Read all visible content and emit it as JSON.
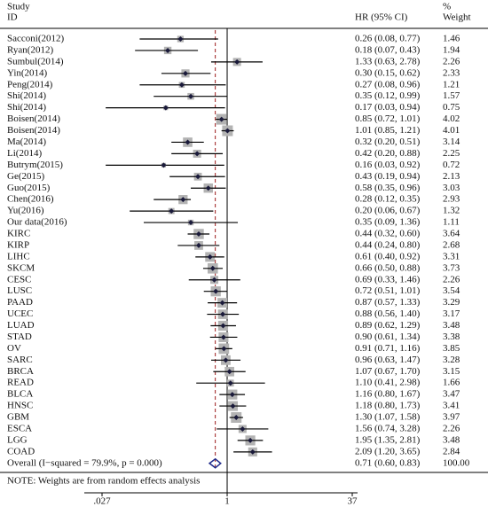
{
  "chart_data": {
    "type": "forest",
    "header": {
      "study": "Study",
      "id": "ID",
      "effect": "HR (95% CI)",
      "percent": "%",
      "weight": "Weight"
    },
    "categories": [
      "Sacconi(2012)",
      "Ryan(2012)",
      "Sumbul(2014)",
      "Yin(2014)",
      "Peng(2014)",
      "Shi(2014)",
      "Shi(2014)",
      "Boisen(2014)",
      "Boisen(2014)",
      "Ma(2014)",
      "Li(2014)",
      "Butrym(2015)",
      "Ge(2015)",
      "Guo(2015)",
      "Chen(2016)",
      "Yu(2016)",
      "Our data(2016)",
      "KIRC",
      "KIRP",
      "LIHC",
      "SKCM",
      "CESC",
      "LUSC",
      "PAAD",
      "UCEC",
      "LUAD",
      "STAD",
      "OV",
      "SARC",
      "BRCA",
      "READ",
      "BLCA",
      "HNSC",
      "GBM",
      "ESCA",
      "LGG",
      "COAD"
    ],
    "values": [
      0.26,
      0.18,
      1.33,
      0.3,
      0.27,
      0.35,
      0.17,
      0.85,
      1.01,
      0.32,
      0.42,
      0.16,
      0.43,
      0.58,
      0.28,
      0.2,
      0.35,
      0.44,
      0.44,
      0.61,
      0.66,
      0.69,
      0.72,
      0.87,
      0.88,
      0.89,
      0.9,
      0.91,
      0.96,
      1.07,
      1.1,
      1.16,
      1.18,
      1.3,
      1.56,
      1.95,
      2.09
    ],
    "lower": [
      0.08,
      0.07,
      0.63,
      0.15,
      0.08,
      0.12,
      0.03,
      0.72,
      0.85,
      0.2,
      0.2,
      0.03,
      0.19,
      0.35,
      0.12,
      0.06,
      0.09,
      0.32,
      0.24,
      0.4,
      0.5,
      0.33,
      0.51,
      0.57,
      0.56,
      0.62,
      0.61,
      0.71,
      0.63,
      0.67,
      0.41,
      0.8,
      0.8,
      1.07,
      0.74,
      1.35,
      1.2
    ],
    "upper": [
      0.77,
      0.43,
      2.78,
      0.62,
      0.96,
      0.99,
      0.94,
      1.01,
      1.21,
      0.51,
      0.88,
      0.92,
      0.94,
      0.96,
      0.35,
      0.67,
      1.36,
      0.6,
      0.8,
      0.92,
      0.88,
      1.46,
      1.01,
      1.33,
      1.4,
      1.29,
      1.34,
      1.16,
      1.47,
      1.7,
      2.98,
      1.67,
      1.73,
      1.58,
      3.28,
      2.81,
      3.65
    ],
    "value_labels": [
      "0.26 (0.08, 0.77)",
      "0.18 (0.07, 0.43)",
      "1.33 (0.63, 2.78)",
      "0.30 (0.15, 0.62)",
      "0.27 (0.08, 0.96)",
      "0.35 (0.12, 0.99)",
      "0.17 (0.03, 0.94)",
      "0.85 (0.72, 1.01)",
      "1.01 (0.85, 1.21)",
      "0.32 (0.20, 0.51)",
      "0.42 (0.20, 0.88)",
      "0.16 (0.03, 0.92)",
      "0.43 (0.19, 0.94)",
      "0.58 (0.35, 0.96)",
      "0.28 (0.12, 0.35)",
      "0.20 (0.06, 0.67)",
      "0.35 (0.09, 1.36)",
      "0.44 (0.32, 0.60)",
      "0.44 (0.24, 0.80)",
      "0.61 (0.40, 0.92)",
      "0.66 (0.50, 0.88)",
      "0.69 (0.33, 1.46)",
      "0.72 (0.51, 1.01)",
      "0.87 (0.57, 1.33)",
      "0.88 (0.56, 1.40)",
      "0.89 (0.62, 1.29)",
      "0.90 (0.61, 1.34)",
      "0.91 (0.71, 1.16)",
      "0.96 (0.63, 1.47)",
      "1.07 (0.67, 1.70)",
      "1.10 (0.41, 2.98)",
      "1.16 (0.80, 1.67)",
      "1.18 (0.80, 1.73)",
      "1.30 (1.07, 1.58)",
      "1.56 (0.74, 3.28)",
      "1.95 (1.35, 2.81)",
      "2.09 (1.20, 3.65)"
    ],
    "weights": [
      1.46,
      1.94,
      2.26,
      2.33,
      1.21,
      1.57,
      0.75,
      4.02,
      4.01,
      3.14,
      2.25,
      0.72,
      2.13,
      3.03,
      2.93,
      1.32,
      1.11,
      3.64,
      2.68,
      3.31,
      3.73,
      2.26,
      3.54,
      3.29,
      3.17,
      3.48,
      3.38,
      3.85,
      3.28,
      3.15,
      1.66,
      3.47,
      3.41,
      3.97,
      2.26,
      3.48,
      2.84
    ],
    "overall": {
      "label": "Overall  (I−squared = 79.9%, p = 0.000)",
      "value": 0.71,
      "lower": 0.6,
      "upper": 0.83,
      "value_label": "0.71 (0.60, 0.83)",
      "weight": 100,
      "weight_label": "100.00"
    },
    "note": "NOTE: Weights are from random effects analysis",
    "xscale": "log",
    "xlim": [
      0.027,
      37
    ],
    "xticks": [
      {
        "value": 0.027,
        "label": ".027"
      },
      1,
      37
    ],
    "null_line": 1,
    "square_color": "#b3b3b3",
    "point_color": "#1a1a3a",
    "overall_line_color": "#9b1c1c",
    "diamond_color": "#1f2a8a"
  }
}
